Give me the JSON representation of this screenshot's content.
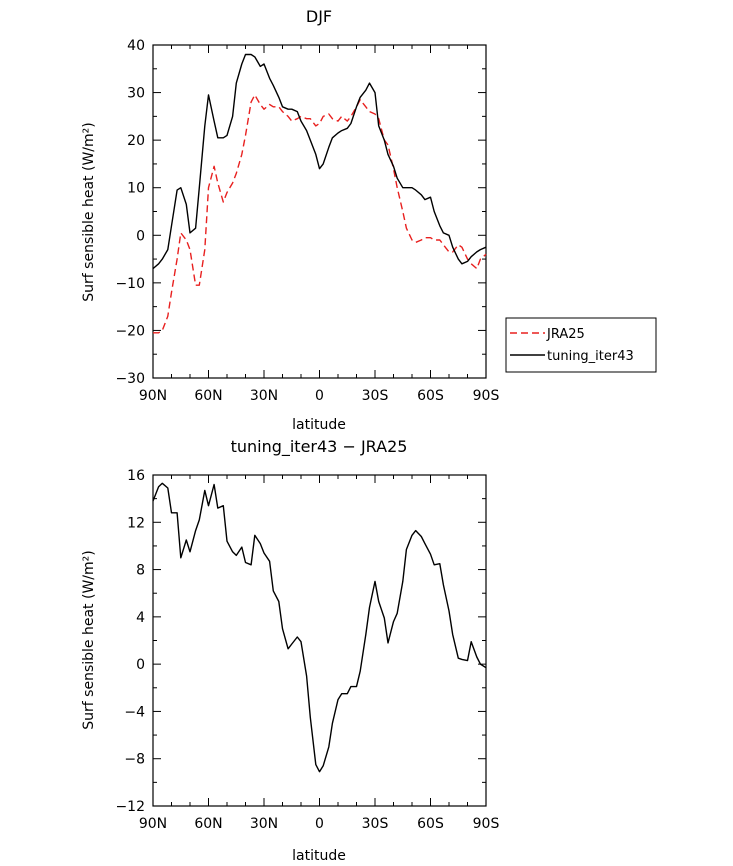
{
  "chart_data": [
    {
      "type": "line",
      "title": "DJF",
      "xlabel": "latitude",
      "ylabel": "Surf sensible heat (W/m²)",
      "xlim": [
        90,
        -90
      ],
      "ylim": [
        -30,
        40
      ],
      "xticks": [
        90,
        60,
        30,
        0,
        -30,
        -60,
        -90
      ],
      "xtick_labels": [
        "90N",
        "60N",
        "30N",
        "0",
        "30S",
        "60S",
        "90S"
      ],
      "yticks": [
        -30,
        -20,
        -10,
        0,
        10,
        20,
        30,
        40
      ],
      "ytick_labels": [
        "−30",
        "−20",
        "−10",
        "0",
        "10",
        "20",
        "30",
        "40"
      ],
      "legend": "outside-right",
      "series": [
        {
          "name": "JRA25",
          "color": "#e8201f",
          "dash": "dashed",
          "x": [
            90,
            87,
            85,
            82,
            80,
            77,
            75,
            72,
            70,
            67,
            65,
            62,
            60,
            57,
            55,
            52,
            50,
            47,
            45,
            42,
            40,
            37,
            35,
            32,
            30,
            27,
            25,
            22,
            20,
            17,
            15,
            12,
            10,
            7,
            5,
            2,
            0,
            -2,
            -5,
            -7,
            -10,
            -12,
            -15,
            -17,
            -20,
            -22,
            -25,
            -27,
            -30,
            -32,
            -35,
            -37,
            -40,
            -42,
            -45,
            -47,
            -50,
            -52,
            -55,
            -57,
            -60,
            -62,
            -65,
            -67,
            -70,
            -72,
            -75,
            -77,
            -80,
            -82,
            -85,
            -87,
            -90
          ],
          "values": [
            -20.5,
            -20.5,
            -20,
            -17,
            -12,
            -5,
            0.5,
            -1,
            -3,
            -10.5,
            -10.5,
            -3,
            10,
            14.5,
            11,
            7,
            9,
            11,
            13,
            17,
            21,
            28,
            29.5,
            27.5,
            26.5,
            27.5,
            27,
            27,
            26,
            25,
            24,
            24.5,
            25,
            24.5,
            24.5,
            23,
            23.5,
            25,
            25.5,
            24.5,
            24,
            25,
            24,
            25,
            27,
            28.5,
            27,
            26,
            25.5,
            24.5,
            20,
            19,
            14,
            10,
            5,
            1.5,
            -1,
            -1.5,
            -1,
            -0.5,
            -0.5,
            -1,
            -1,
            -2,
            -3.5,
            -3.5,
            -2,
            -2.5,
            -5,
            -6,
            -7,
            -5,
            -4
          ]
        },
        {
          "name": "tuning_iter43",
          "color": "#000000",
          "dash": "solid",
          "x": [
            90,
            87,
            85,
            82,
            80,
            77,
            75,
            72,
            70,
            67,
            65,
            62,
            60,
            57,
            55,
            52,
            50,
            47,
            45,
            42,
            40,
            37,
            35,
            32,
            30,
            27,
            25,
            22,
            20,
            17,
            15,
            12,
            10,
            7,
            5,
            2,
            0,
            -2,
            -5,
            -7,
            -10,
            -12,
            -15,
            -17,
            -20,
            -22,
            -25,
            -27,
            -30,
            -32,
            -35,
            -37,
            -40,
            -42,
            -45,
            -47,
            -50,
            -52,
            -55,
            -57,
            -60,
            -62,
            -65,
            -67,
            -70,
            -72,
            -75,
            -77,
            -80,
            -82,
            -85,
            -87,
            -90
          ],
          "values": [
            -7,
            -6,
            -5,
            -3,
            2,
            9.5,
            10,
            6.5,
            0.5,
            1.5,
            10,
            23,
            29.5,
            24,
            20.5,
            20.5,
            21,
            25,
            32,
            36,
            38,
            38,
            37.5,
            35.5,
            36,
            33,
            31.5,
            29,
            27,
            26.5,
            26.5,
            26,
            24,
            22,
            20,
            17,
            14,
            15,
            18.5,
            20.5,
            21.5,
            22,
            22.5,
            23.5,
            27,
            29,
            30.5,
            32,
            30,
            23,
            20,
            17,
            14.5,
            12,
            10,
            10,
            10,
            9.5,
            8.5,
            7.5,
            8,
            5,
            2,
            0.5,
            0,
            -2.5,
            -5,
            -6,
            -5.5,
            -4.5,
            -3.5,
            -3,
            -2.5
          ]
        }
      ]
    },
    {
      "type": "line",
      "title": "tuning_iter43 − JRA25",
      "xlabel": "latitude",
      "ylabel": "Surf sensible heat (W/m²)",
      "xlim": [
        90,
        -90
      ],
      "ylim": [
        -12,
        16
      ],
      "xticks": [
        90,
        60,
        30,
        0,
        -30,
        -60,
        -90
      ],
      "xtick_labels": [
        "90N",
        "60N",
        "30N",
        "0",
        "30S",
        "60S",
        "90S"
      ],
      "yticks": [
        -12,
        -8,
        -4,
        0,
        4,
        8,
        12,
        16
      ],
      "ytick_labels": [
        "−12",
        "−8",
        "−4",
        "0",
        "4",
        "8",
        "12",
        "16"
      ],
      "series": [
        {
          "name": "tuning_iter43 − JRA25",
          "color": "#000000",
          "dash": "solid",
          "x": [
            90,
            87,
            85,
            82,
            80,
            77,
            75,
            72,
            70,
            67,
            65,
            62,
            60,
            57,
            55,
            52,
            50,
            47,
            45,
            42,
            40,
            37,
            35,
            32,
            30,
            27,
            25,
            22,
            20,
            17,
            15,
            12,
            10,
            7,
            5,
            2,
            0,
            -2,
            -5,
            -7,
            -10,
            -12,
            -15,
            -17,
            -20,
            -22,
            -25,
            -27,
            -30,
            -32,
            -35,
            -37,
            -40,
            -42,
            -45,
            -47,
            -50,
            -52,
            -55,
            -57,
            -60,
            -62,
            -65,
            -67,
            -70,
            -72,
            -75,
            -77,
            -80,
            -82,
            -85,
            -87,
            -90
          ],
          "values": [
            13.8,
            15,
            15.3,
            14.9,
            12.8,
            12.8,
            9,
            10.5,
            9.5,
            11.3,
            12.2,
            14.7,
            13.4,
            15.2,
            13.2,
            13.4,
            10.4,
            9.5,
            9.2,
            9.9,
            8.6,
            8.4,
            10.9,
            10.2,
            9.4,
            8.7,
            6.2,
            5.3,
            3,
            1.3,
            1.7,
            2.3,
            1.9,
            -1,
            -4.5,
            -8.5,
            -9.1,
            -8.6,
            -7,
            -5,
            -3,
            -2.5,
            -2.5,
            -1.9,
            -1.9,
            -0.6,
            2.5,
            4.8,
            7,
            5.3,
            3.9,
            1.8,
            3.6,
            4.3,
            7,
            9.7,
            10.9,
            11.3,
            10.8,
            10.2,
            9.3,
            8.4,
            8.5,
            6.7,
            4.5,
            2.5,
            0.5,
            0.4,
            0.3,
            1.9,
            0.6,
            0,
            -0.3
          ]
        }
      ]
    }
  ]
}
